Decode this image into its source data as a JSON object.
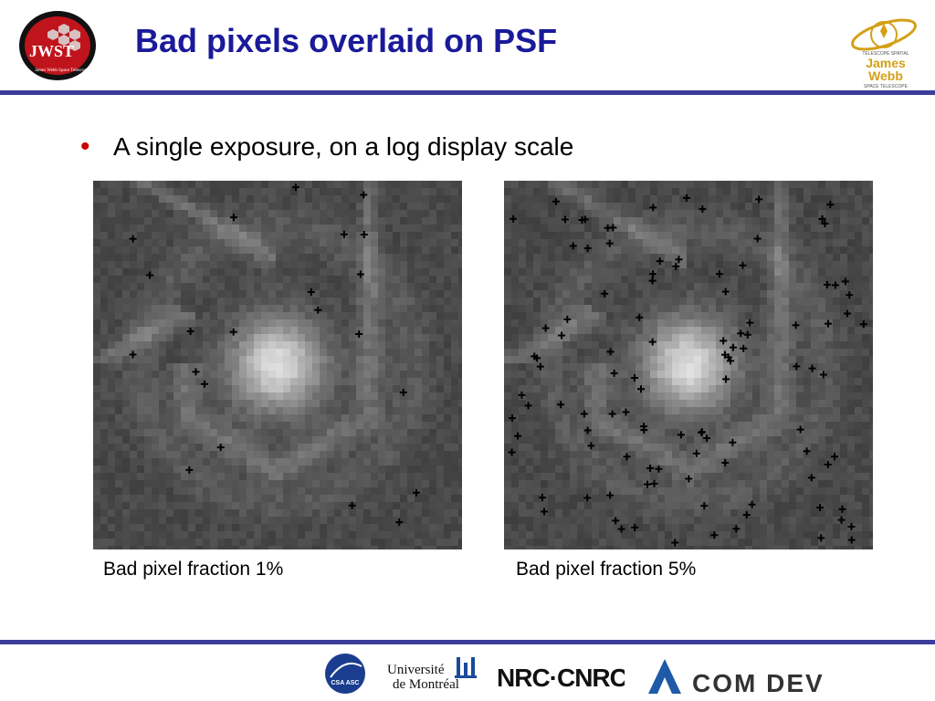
{
  "slide": {
    "title": "Bad pixels overlaid on PSF"
  },
  "bullets": [
    {
      "text": "A single exposure, on a log display scale"
    }
  ],
  "panels": [
    {
      "caption": "Bad pixel fraction 1%",
      "bad_pixel_fraction": 0.01
    },
    {
      "caption": "Bad pixel fraction 5%",
      "bad_pixel_fraction": 0.05
    }
  ],
  "logos": {
    "jwst_left": {
      "text": "JWST",
      "ring_text": "James Webb Space Telescope"
    },
    "jwst_right": {
      "line1": "TELESCOPE SPATIAL",
      "line2": "James",
      "line3": "Webb",
      "line4": "SPACE TELESCOPE"
    },
    "csa": {
      "text": "CSA ASC"
    },
    "udem": {
      "line1": "Université",
      "line2": "de Montréal"
    },
    "nrc": {
      "text": "NRC·CNRC"
    },
    "comdev": {
      "text": "COM DEV"
    }
  },
  "colors": {
    "title": "#1a1a9a",
    "rule": "#3c3c9a",
    "bullet": "#cc0000"
  }
}
